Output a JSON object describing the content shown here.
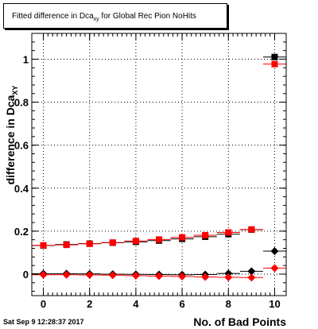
{
  "title": {
    "prefix": "Fitted difference in Dca",
    "subscript": "xy",
    "suffix": " for Global Rec Pion NoHits"
  },
  "timestamp": "Sat Sep  9 12:28:37 2017",
  "chart_data": {
    "type": "scatter",
    "title": "Fitted difference in Dca_xy for Global Rec Pion NoHits",
    "xlabel": "No. of Bad Points",
    "ylabel": "difference in Dca",
    "ylabel_subscript": "XY",
    "xlim": [
      -0.5,
      10.5
    ],
    "ylim": [
      -0.1,
      1.12
    ],
    "x_ticks": [
      0,
      2,
      4,
      6,
      8,
      10
    ],
    "y_ticks": [
      0,
      0.2,
      0.4,
      0.6,
      0.8,
      1
    ],
    "grid": true,
    "series": [
      {
        "marker": "square",
        "color": "#000000",
        "x": [
          0,
          1,
          2,
          3,
          4,
          5,
          6,
          7,
          8,
          9,
          10
        ],
        "y": [
          0.133,
          0.138,
          0.142,
          0.146,
          0.15,
          0.156,
          0.164,
          0.174,
          0.186,
          0.207,
          1.01
        ]
      },
      {
        "marker": "square",
        "color": "#ff0000",
        "x": [
          0,
          1,
          2,
          3,
          4,
          5,
          6,
          7,
          8,
          9,
          10
        ],
        "y": [
          0.134,
          0.136,
          0.141,
          0.147,
          0.154,
          0.161,
          0.171,
          0.181,
          0.194,
          0.208,
          0.977
        ]
      },
      {
        "marker": "diamond",
        "color": "#000000",
        "x": [
          0,
          1,
          2,
          3,
          4,
          5,
          6,
          7,
          8,
          9,
          10
        ],
        "y": [
          0.002,
          0.002,
          0.001,
          0.0,
          -0.001,
          -0.002,
          -0.003,
          -0.002,
          0.003,
          0.013,
          0.107
        ]
      },
      {
        "marker": "diamond",
        "color": "#ff0000",
        "x": [
          0,
          1,
          2,
          3,
          4,
          5,
          6,
          7,
          8,
          9,
          10
        ],
        "y": [
          -0.003,
          -0.003,
          -0.004,
          -0.005,
          -0.007,
          -0.009,
          -0.011,
          -0.013,
          -0.015,
          -0.016,
          0.028
        ]
      }
    ]
  }
}
